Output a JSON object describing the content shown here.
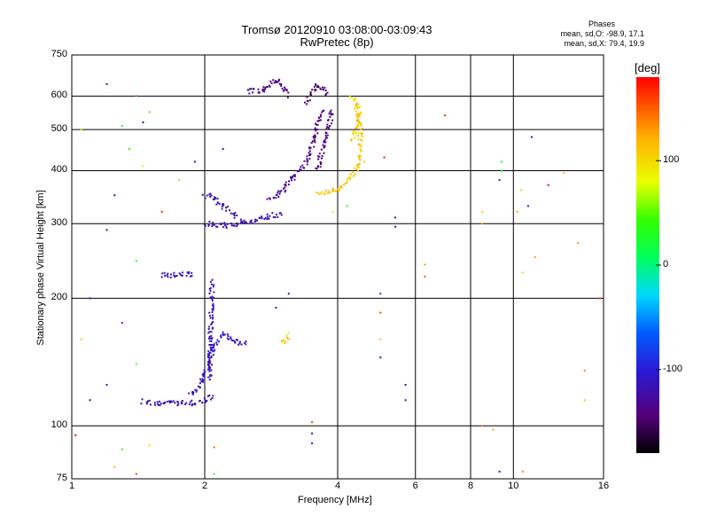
{
  "header": {
    "title_line1": "Tromsø 20120910 03:08:00-03:09:43",
    "title_line2": "RwPretec (8p)"
  },
  "phase_box": {
    "heading": "Phases",
    "line1": "mean, sd,O: -98.9, 17.1",
    "line2": "mean, sd,X:  79.4, 19.9"
  },
  "colorbar": {
    "label": "[deg]",
    "ticks": [
      "100",
      "0",
      "-100"
    ],
    "tick_values": [
      100,
      0,
      -100
    ],
    "range": [
      -180,
      180
    ]
  },
  "chart_data": {
    "type": "scatter",
    "xlabel": "Frequency [MHz]",
    "ylabel": "Stationary phase Virtual Height [km]",
    "x_scale": "log",
    "y_scale": "log",
    "xlim": [
      1,
      16
    ],
    "ylim": [
      75,
      750
    ],
    "x_ticks": [
      1,
      2,
      4,
      6,
      8,
      10,
      16
    ],
    "x_tick_labels": [
      "1",
      "2",
      "4",
      "6",
      "8",
      "10",
      "16"
    ],
    "y_ticks": [
      75,
      100,
      200,
      300,
      400,
      500,
      600,
      750
    ],
    "y_tick_labels": [
      "75",
      "100",
      "200",
      "300",
      "400",
      "500",
      "600",
      "750"
    ],
    "grid": true,
    "color_by": "phase_deg",
    "traces": [
      {
        "x": [
          1.45,
          1.6,
          1.8,
          2.0,
          2.1
        ],
        "y": [
          114,
          113,
          113,
          114,
          118
        ],
        "phase": -115
      },
      {
        "x": [
          1.85,
          1.95,
          2.0,
          2.05,
          2.08,
          2.1,
          2.15,
          2.2,
          2.3,
          2.5
        ],
        "y": [
          118,
          125,
          132,
          140,
          148,
          155,
          160,
          165,
          160,
          155
        ],
        "phase": -108
      },
      {
        "x": [
          2.05,
          2.06,
          2.07,
          2.08
        ],
        "y": [
          130,
          160,
          190,
          220
        ],
        "phase": -112
      },
      {
        "x": [
          1.6,
          1.7,
          1.8,
          1.9
        ],
        "y": [
          226,
          227,
          228,
          227
        ],
        "phase": -110
      },
      {
        "x": [
          2.0,
          2.1,
          2.25,
          2.4,
          2.6,
          2.8,
          3.0
        ],
        "y": [
          300,
          298,
          297,
          300,
          304,
          312,
          318
        ],
        "phase": -118
      },
      {
        "x": [
          2.0,
          2.1,
          2.2,
          2.3,
          2.4
        ],
        "y": [
          350,
          345,
          330,
          320,
          310
        ],
        "phase": -115
      },
      {
        "x": [
          2.8,
          3.0,
          3.2,
          3.4,
          3.5,
          3.6,
          3.7
        ],
        "y": [
          340,
          360,
          390,
          420,
          460,
          510,
          560
        ],
        "phase": -135
      },
      {
        "x": [
          3.6,
          3.7,
          3.8,
          3.9
        ],
        "y": [
          400,
          450,
          500,
          560
        ],
        "phase": -140
      },
      {
        "x": [
          3.4,
          3.5,
          3.6,
          3.7,
          3.8
        ],
        "y": [
          580,
          615,
          640,
          630,
          600
        ],
        "phase": -145
      },
      {
        "x": [
          2.5,
          2.6,
          2.7,
          2.8,
          2.9,
          3.0,
          3.1
        ],
        "y": [
          615,
          620,
          612,
          640,
          655,
          630,
          600
        ],
        "phase": -138
      },
      {
        "x": [
          3.6,
          3.8,
          4.0,
          4.2,
          4.4,
          4.5,
          4.5,
          4.4
        ],
        "y": [
          352,
          355,
          362,
          378,
          400,
          440,
          500,
          560
        ],
        "phase": 110
      },
      {
        "x": [
          4.3,
          4.4,
          4.5,
          4.4,
          4.3
        ],
        "y": [
          600,
          580,
          540,
          500,
          470
        ],
        "phase": 105
      },
      {
        "x": [
          3.0,
          3.05,
          3.1
        ],
        "y": [
          155,
          160,
          165
        ],
        "phase": 105
      }
    ],
    "noise_points": [
      {
        "x": 1.05,
        "y": 500,
        "phase": 100
      },
      {
        "x": 1.2,
        "y": 640,
        "phase": -120
      },
      {
        "x": 1.3,
        "y": 510,
        "phase": 20
      },
      {
        "x": 1.4,
        "y": 600,
        "phase": 150
      },
      {
        "x": 1.45,
        "y": 520,
        "phase": -110
      },
      {
        "x": 1.5,
        "y": 550,
        "phase": 130
      },
      {
        "x": 1.35,
        "y": 450,
        "phase": 40
      },
      {
        "x": 1.45,
        "y": 410,
        "phase": 90
      },
      {
        "x": 1.25,
        "y": 350,
        "phase": -120
      },
      {
        "x": 1.6,
        "y": 320,
        "phase": 170
      },
      {
        "x": 1.75,
        "y": 380,
        "phase": 60
      },
      {
        "x": 1.2,
        "y": 290,
        "phase": -130
      },
      {
        "x": 1.4,
        "y": 245,
        "phase": 30
      },
      {
        "x": 1.1,
        "y": 200,
        "phase": -100
      },
      {
        "x": 1.3,
        "y": 175,
        "phase": -90
      },
      {
        "x": 1.05,
        "y": 160,
        "phase": 110
      },
      {
        "x": 1.4,
        "y": 140,
        "phase": 50
      },
      {
        "x": 1.2,
        "y": 125,
        "phase": -110
      },
      {
        "x": 1.1,
        "y": 115,
        "phase": -120
      },
      {
        "x": 1.5,
        "y": 90,
        "phase": 70
      },
      {
        "x": 1.3,
        "y": 88,
        "phase": 40
      },
      {
        "x": 1.25,
        "y": 80,
        "phase": 120
      },
      {
        "x": 1.4,
        "y": 77,
        "phase": 160
      },
      {
        "x": 1.02,
        "y": 95,
        "phase": 180
      },
      {
        "x": 2.1,
        "y": 89,
        "phase": 150
      },
      {
        "x": 2.1,
        "y": 77,
        "phase": 20
      },
      {
        "x": 1.9,
        "y": 420,
        "phase": -120
      },
      {
        "x": 2.2,
        "y": 450,
        "phase": -110
      },
      {
        "x": 3.5,
        "y": 102,
        "phase": 160
      },
      {
        "x": 3.5,
        "y": 96,
        "phase": -120
      },
      {
        "x": 3.5,
        "y": 91,
        "phase": -120
      },
      {
        "x": 3.1,
        "y": 205,
        "phase": -120
      },
      {
        "x": 2.9,
        "y": 190,
        "phase": -100
      },
      {
        "x": 3.9,
        "y": 320,
        "phase": 90
      },
      {
        "x": 4.2,
        "y": 330,
        "phase": 30
      },
      {
        "x": 4.6,
        "y": 420,
        "phase": 110
      },
      {
        "x": 5.1,
        "y": 430,
        "phase": 170
      },
      {
        "x": 5.4,
        "y": 310,
        "phase": -120
      },
      {
        "x": 5.4,
        "y": 295,
        "phase": -125
      },
      {
        "x": 5.0,
        "y": 205,
        "phase": -90
      },
      {
        "x": 5.0,
        "y": 185,
        "phase": 160
      },
      {
        "x": 5.0,
        "y": 160,
        "phase": 110
      },
      {
        "x": 5.0,
        "y": 145,
        "phase": -110
      },
      {
        "x": 5.7,
        "y": 125,
        "phase": -120
      },
      {
        "x": 5.7,
        "y": 115,
        "phase": -120
      },
      {
        "x": 6.3,
        "y": 240,
        "phase": 130
      },
      {
        "x": 6.3,
        "y": 225,
        "phase": 150
      },
      {
        "x": 7.0,
        "y": 540,
        "phase": 170
      },
      {
        "x": 8.5,
        "y": 320,
        "phase": 100
      },
      {
        "x": 8.5,
        "y": 300,
        "phase": 130
      },
      {
        "x": 8.5,
        "y": 100,
        "phase": 140
      },
      {
        "x": 9.4,
        "y": 420,
        "phase": 10
      },
      {
        "x": 9.4,
        "y": 400,
        "phase": 20
      },
      {
        "x": 9.3,
        "y": 380,
        "phase": -100
      },
      {
        "x": 9.3,
        "y": 78,
        "phase": -120
      },
      {
        "x": 10.2,
        "y": 320,
        "phase": 130
      },
      {
        "x": 10.5,
        "y": 230,
        "phase": 100
      },
      {
        "x": 10.4,
        "y": 360,
        "phase": 110
      },
      {
        "x": 10.8,
        "y": 330,
        "phase": -110
      },
      {
        "x": 11.0,
        "y": 480,
        "phase": -120
      },
      {
        "x": 11.2,
        "y": 250,
        "phase": 130
      },
      {
        "x": 12.0,
        "y": 370,
        "phase": 180
      },
      {
        "x": 13.0,
        "y": 395,
        "phase": 110
      },
      {
        "x": 14.0,
        "y": 270,
        "phase": 130
      },
      {
        "x": 14.5,
        "y": 115,
        "phase": 120
      },
      {
        "x": 14.5,
        "y": 135,
        "phase": 140
      },
      {
        "x": 15.7,
        "y": 200,
        "phase": 160
      },
      {
        "x": 10.5,
        "y": 78,
        "phase": 140
      },
      {
        "x": 9.0,
        "y": 98,
        "phase": 130
      }
    ]
  }
}
